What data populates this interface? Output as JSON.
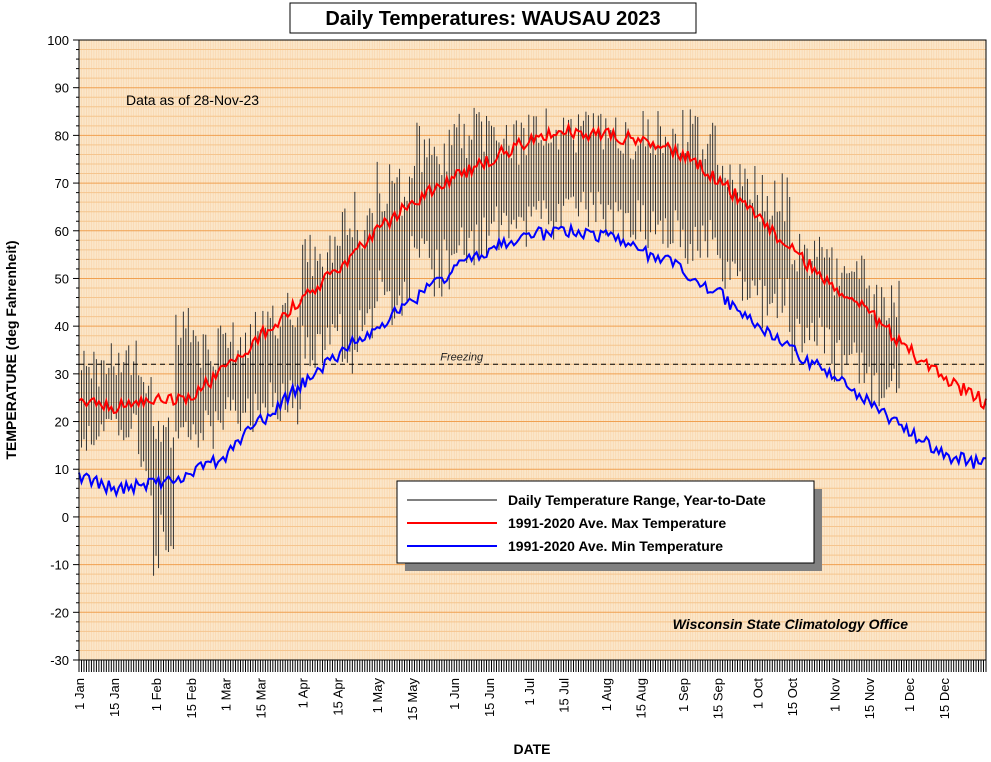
{
  "chart_data": {
    "type": "line",
    "title": "Daily Temperatures: WAUSAU 2023",
    "xlabel": "DATE",
    "ylabel": "TEMPERATURE (deg Fahrenheit)",
    "ylim": [
      -30,
      100
    ],
    "yticks": [
      100,
      90,
      80,
      70,
      60,
      50,
      40,
      30,
      20,
      10,
      0,
      -10,
      -20,
      -30
    ],
    "xlim_days": [
      1,
      366
    ],
    "xticks": [
      {
        "label": "1 Jan",
        "day": 1
      },
      {
        "label": "15 Jan",
        "day": 15
      },
      {
        "label": "1 Feb",
        "day": 32
      },
      {
        "label": "15 Feb",
        "day": 46
      },
      {
        "label": "1 Mar",
        "day": 60
      },
      {
        "label": "15 Mar",
        "day": 74
      },
      {
        "label": "1 Apr",
        "day": 91
      },
      {
        "label": "15 Apr",
        "day": 105
      },
      {
        "label": "1 May",
        "day": 121
      },
      {
        "label": "15 May",
        "day": 135
      },
      {
        "label": "1 Jun",
        "day": 152
      },
      {
        "label": "15 Jun",
        "day": 166
      },
      {
        "label": "1 Jul",
        "day": 182
      },
      {
        "label": "15 Jul",
        "day": 196
      },
      {
        "label": "1 Aug",
        "day": 213
      },
      {
        "label": "15 Aug",
        "day": 227
      },
      {
        "label": "1 Sep",
        "day": 244
      },
      {
        "label": "15 Sep",
        "day": 258
      },
      {
        "label": "1 Oct",
        "day": 274
      },
      {
        "label": "15 Oct",
        "day": 288
      },
      {
        "label": "1 Nov",
        "day": 305
      },
      {
        "label": "15 Nov",
        "day": 319
      },
      {
        "label": "1 Dec",
        "day": 335
      },
      {
        "label": "15 Dec",
        "day": 349
      }
    ],
    "annotation": "Data as of 28-Nov-23",
    "freezing_label": "Freezing",
    "freezing_value": 32,
    "credit": "Wisconsin State Climatology Office",
    "grid": true,
    "legend_position": "lower-right",
    "colors": {
      "background": "#fbe6c9",
      "grid_major": "#f0a050",
      "grid_minor": "#f5c58e",
      "range": "#333333",
      "max": "#ff0000",
      "min": "#0000ff"
    },
    "series": [
      {
        "name": "Daily Temperature Range, Year-to-Date",
        "type": "range",
        "ranges": [
          {
            "from": 1,
            "to": 10,
            "low": 11,
            "high": 35
          },
          {
            "from": 10,
            "to": 25,
            "low": 16,
            "high": 37
          },
          {
            "from": 25,
            "to": 31,
            "low": 4,
            "high": 32
          },
          {
            "from": 31,
            "to": 40,
            "low": -14,
            "high": 29
          },
          {
            "from": 40,
            "to": 46,
            "low": 13,
            "high": 44
          },
          {
            "from": 46,
            "to": 57,
            "low": 13,
            "high": 40
          },
          {
            "from": 57,
            "to": 72,
            "low": 17,
            "high": 41
          },
          {
            "from": 72,
            "to": 91,
            "low": 19,
            "high": 47
          },
          {
            "from": 91,
            "to": 105,
            "low": 30,
            "high": 60
          },
          {
            "from": 105,
            "to": 121,
            "low": 30,
            "high": 70
          },
          {
            "from": 121,
            "to": 135,
            "low": 40,
            "high": 75
          },
          {
            "from": 135,
            "to": 152,
            "low": 46,
            "high": 84
          },
          {
            "from": 152,
            "to": 166,
            "low": 52,
            "high": 86
          },
          {
            "from": 166,
            "to": 182,
            "low": 55,
            "high": 84
          },
          {
            "from": 182,
            "to": 196,
            "low": 58,
            "high": 86
          },
          {
            "from": 196,
            "to": 213,
            "low": 60,
            "high": 85
          },
          {
            "from": 213,
            "to": 227,
            "low": 57,
            "high": 84
          },
          {
            "from": 227,
            "to": 244,
            "low": 56,
            "high": 86
          },
          {
            "from": 244,
            "to": 258,
            "low": 52,
            "high": 86
          },
          {
            "from": 258,
            "to": 274,
            "low": 45,
            "high": 74
          },
          {
            "from": 274,
            "to": 288,
            "low": 38,
            "high": 74
          },
          {
            "from": 288,
            "to": 305,
            "low": 32,
            "high": 60
          },
          {
            "from": 305,
            "to": 319,
            "low": 27,
            "high": 56
          },
          {
            "from": 319,
            "to": 332,
            "low": 22,
            "high": 50
          }
        ]
      },
      {
        "name": "1991-2020 Ave. Max Temperature",
        "type": "line",
        "points": [
          [
            1,
            24
          ],
          [
            15,
            23
          ],
          [
            32,
            25
          ],
          [
            46,
            25
          ],
          [
            60,
            31
          ],
          [
            74,
            38
          ],
          [
            91,
            46
          ],
          [
            105,
            52
          ],
          [
            121,
            60
          ],
          [
            135,
            66
          ],
          [
            152,
            71
          ],
          [
            166,
            75
          ],
          [
            182,
            79
          ],
          [
            196,
            81
          ],
          [
            213,
            80
          ],
          [
            227,
            79
          ],
          [
            244,
            76
          ],
          [
            258,
            71
          ],
          [
            274,
            63
          ],
          [
            288,
            56
          ],
          [
            305,
            48
          ],
          [
            319,
            43
          ],
          [
            335,
            35
          ],
          [
            349,
            29
          ],
          [
            366,
            24
          ]
        ]
      },
      {
        "name": "1991-2020 Ave. Min Temperature",
        "type": "line",
        "points": [
          [
            1,
            8
          ],
          [
            15,
            6
          ],
          [
            32,
            7
          ],
          [
            46,
            9
          ],
          [
            60,
            13
          ],
          [
            74,
            20
          ],
          [
            91,
            28
          ],
          [
            105,
            34
          ],
          [
            121,
            40
          ],
          [
            135,
            45
          ],
          [
            152,
            52
          ],
          [
            166,
            56
          ],
          [
            182,
            59
          ],
          [
            196,
            60
          ],
          [
            213,
            59
          ],
          [
            227,
            56
          ],
          [
            244,
            52
          ],
          [
            258,
            47
          ],
          [
            274,
            40
          ],
          [
            288,
            35
          ],
          [
            305,
            29
          ],
          [
            319,
            24
          ],
          [
            335,
            18
          ],
          [
            349,
            13
          ],
          [
            366,
            11
          ]
        ]
      }
    ]
  }
}
